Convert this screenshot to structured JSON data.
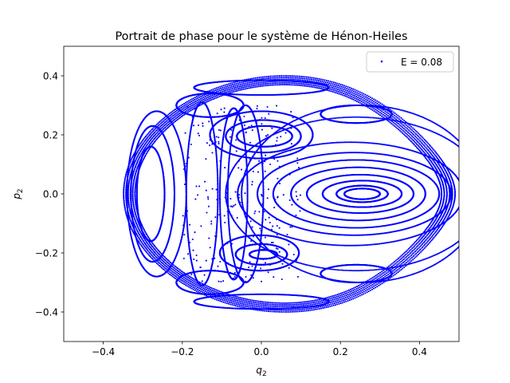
{
  "chart_data": {
    "type": "scatter",
    "title": "Portrait de phase pour le système de Hénon-Heiles",
    "xlabel_base": "q",
    "xlabel_sub": "2",
    "ylabel_base": "p",
    "ylabel_sub": "2",
    "xlim": [
      -0.5,
      0.5
    ],
    "ylim": [
      -0.5,
      0.5
    ],
    "xticks": [
      -0.4,
      -0.2,
      0.0,
      0.2,
      0.4
    ],
    "xtick_labels": [
      "−0.4",
      "−0.2",
      "0.0",
      "0.2",
      "0.4"
    ],
    "yticks": [
      -0.4,
      -0.2,
      0.0,
      0.2,
      0.4
    ],
    "ytick_labels": [
      "−0.4",
      "−0.2",
      "0.0",
      "0.2",
      "0.4"
    ],
    "grid": false,
    "legend_position": "top-right",
    "series": [
      {
        "name": "E = 0.08",
        "color": "#0000ff",
        "marker": "point",
        "curves": [
          {
            "kind": "outer",
            "scale": 1.0
          },
          {
            "kind": "outer",
            "scale": 0.985
          },
          {
            "kind": "outer",
            "scale": 0.97
          },
          {
            "kind": "outer",
            "scale": 0.955
          },
          {
            "kind": "outer",
            "scale": 0.94
          },
          {
            "kind": "outer",
            "scale": 0.925
          },
          {
            "kind": "ellipse",
            "cx": 0.255,
            "cy": 0.0,
            "rx": 0.045,
            "ry": 0.018
          },
          {
            "kind": "ellipse",
            "cx": 0.255,
            "cy": 0.0,
            "rx": 0.065,
            "ry": 0.028
          },
          {
            "kind": "ellipse",
            "cx": 0.255,
            "cy": 0.0,
            "rx": 0.1,
            "ry": 0.045
          },
          {
            "kind": "ellipse",
            "cx": 0.25,
            "cy": 0.0,
            "rx": 0.135,
            "ry": 0.065
          },
          {
            "kind": "ellipse",
            "cx": 0.245,
            "cy": 0.0,
            "rx": 0.17,
            "ry": 0.09
          },
          {
            "kind": "ellipse",
            "cx": 0.24,
            "cy": 0.0,
            "rx": 0.21,
            "ry": 0.115
          },
          {
            "kind": "ellipse",
            "cx": 0.235,
            "cy": 0.0,
            "rx": 0.245,
            "ry": 0.14
          },
          {
            "kind": "ellipse",
            "cx": 0.225,
            "cy": 0.0,
            "rx": 0.285,
            "ry": 0.175
          },
          {
            "kind": "ellipse",
            "cx": 0.24,
            "cy": 0.0,
            "rx": 0.33,
            "ry": 0.26
          },
          {
            "kind": "ellipse",
            "cx": 0.255,
            "cy": 0.0,
            "rx": 0.305,
            "ry": 0.3
          },
          {
            "kind": "ellipse",
            "cx": 0.008,
            "cy": 0.195,
            "rx": 0.07,
            "ry": 0.035
          },
          {
            "kind": "ellipse",
            "cx": 0.005,
            "cy": 0.195,
            "rx": 0.095,
            "ry": 0.055
          },
          {
            "kind": "ellipse",
            "cx": 0.0,
            "cy": 0.2,
            "rx": 0.13,
            "ry": 0.08
          },
          {
            "kind": "ellipse",
            "cx": 0.005,
            "cy": -0.205,
            "rx": 0.035,
            "ry": 0.015
          },
          {
            "kind": "ellipse",
            "cx": 0.0,
            "cy": -0.205,
            "rx": 0.065,
            "ry": 0.035
          },
          {
            "kind": "ellipse",
            "cx": -0.005,
            "cy": -0.2,
            "rx": 0.1,
            "ry": 0.06
          },
          {
            "kind": "ellipse",
            "cx": -0.28,
            "cy": 0.0,
            "rx": 0.035,
            "ry": 0.16
          },
          {
            "kind": "ellipse",
            "cx": -0.275,
            "cy": 0.0,
            "rx": 0.055,
            "ry": 0.23
          },
          {
            "kind": "ellipse",
            "cx": -0.265,
            "cy": 0.0,
            "rx": 0.075,
            "ry": 0.28
          },
          {
            "kind": "ellipse",
            "cx": -0.13,
            "cy": 0.3,
            "rx": 0.085,
            "ry": 0.04
          },
          {
            "kind": "ellipse",
            "cx": -0.13,
            "cy": -0.3,
            "rx": 0.085,
            "ry": 0.04
          },
          {
            "kind": "ellipse",
            "cx": 0.24,
            "cy": 0.27,
            "rx": 0.09,
            "ry": 0.03
          },
          {
            "kind": "ellipse",
            "cx": 0.24,
            "cy": -0.27,
            "rx": 0.09,
            "ry": 0.03
          },
          {
            "kind": "ellipse",
            "cx": 0.0,
            "cy": 0.36,
            "rx": 0.17,
            "ry": 0.025
          },
          {
            "kind": "ellipse",
            "cx": 0.0,
            "cy": -0.365,
            "rx": 0.17,
            "ry": 0.025
          },
          {
            "kind": "ellipse",
            "cx": -0.07,
            "cy": 0.0,
            "rx": 0.035,
            "ry": 0.29
          },
          {
            "kind": "ellipse",
            "cx": -0.04,
            "cy": 0.0,
            "rx": 0.045,
            "ry": 0.3
          },
          {
            "kind": "ellipse",
            "cx": -0.15,
            "cy": 0.0,
            "rx": 0.04,
            "ry": 0.31
          }
        ],
        "chaotic_band": {
          "x": [
            -0.2,
            0.1
          ],
          "y": [
            -0.3,
            0.3
          ]
        }
      }
    ]
  }
}
